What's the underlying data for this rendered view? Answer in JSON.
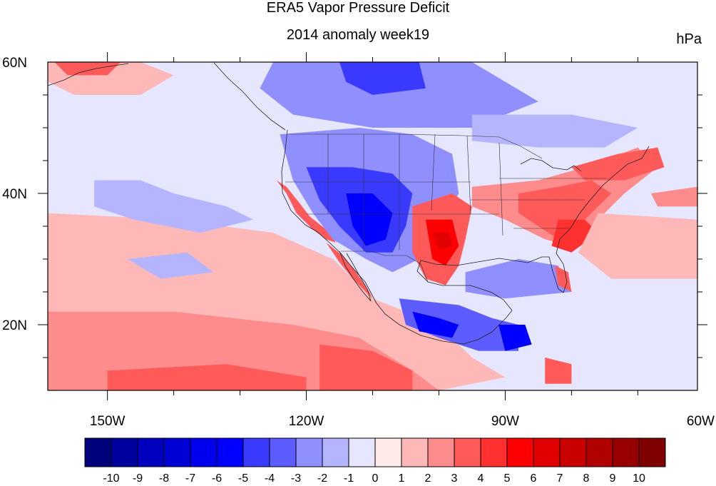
{
  "title": "ERA5 Vapor Pressure Deficit",
  "subtitle": "2014 anomaly week19",
  "units": "hPa",
  "map": {
    "lon_range": [
      -159,
      -61
    ],
    "lat_range": [
      10,
      60
    ],
    "lon_labels": [
      {
        "lon": -150,
        "text": "150W"
      },
      {
        "lon": -120,
        "text": "120W"
      },
      {
        "lon": -90,
        "text": "90W"
      },
      {
        "lon": -60,
        "text": "60W"
      }
    ],
    "lat_labels": [
      {
        "lat": 60,
        "text": "60N"
      },
      {
        "lat": 40,
        "text": "40N"
      },
      {
        "lat": 20,
        "text": "20N"
      }
    ],
    "regions": [
      {
        "name": "california-coast",
        "value": 3,
        "pts": [
          [
            -124.5,
            42
          ],
          [
            -123,
            40
          ],
          [
            -121.5,
            37
          ],
          [
            -119,
            34.5
          ],
          [
            -117,
            33
          ],
          [
            -115.5,
            32.5
          ],
          [
            -117,
            34.5
          ],
          [
            -119.5,
            36.5
          ],
          [
            -121,
            38.5
          ],
          [
            -123,
            41
          ]
        ]
      },
      {
        "name": "baja-coast",
        "value": 3,
        "pts": [
          [
            -117,
            32.5
          ],
          [
            -115,
            29.5
          ],
          [
            -113,
            27
          ],
          [
            -111,
            24.5
          ],
          [
            -109.5,
            23
          ],
          [
            -110.5,
            25
          ],
          [
            -112.5,
            28
          ],
          [
            -114.5,
            30.5
          ]
        ]
      },
      {
        "name": "southwest-pink",
        "value": 1,
        "pts": [
          [
            -159,
            37
          ],
          [
            -140,
            36
          ],
          [
            -125,
            34
          ],
          [
            -116,
            30
          ],
          [
            -110,
            24
          ],
          [
            -100,
            20
          ],
          [
            -95,
            15
          ],
          [
            -90,
            12
          ],
          [
            -100,
            10
          ],
          [
            -159,
            10
          ]
        ]
      },
      {
        "name": "pacific-red",
        "value": 2,
        "pts": [
          [
            -159,
            22
          ],
          [
            -140,
            22
          ],
          [
            -122,
            20
          ],
          [
            -112,
            18
          ],
          [
            -104,
            13
          ],
          [
            -100,
            10
          ],
          [
            -159,
            10
          ]
        ]
      },
      {
        "name": "pacific-deep-red",
        "value": 3,
        "pts": [
          [
            -118,
            17
          ],
          [
            -110,
            16
          ],
          [
            -104,
            13
          ],
          [
            -104,
            10
          ],
          [
            -118,
            10
          ]
        ]
      },
      {
        "name": "pacific-red-west",
        "value": 3,
        "pts": [
          [
            -150,
            13
          ],
          [
            -132,
            14
          ],
          [
            -120,
            12
          ],
          [
            -120,
            10
          ],
          [
            -150,
            10
          ]
        ]
      },
      {
        "name": "nw-pink",
        "value": 1,
        "pts": [
          [
            -159,
            60
          ],
          [
            -145,
            60
          ],
          [
            -140,
            58
          ],
          [
            -145,
            55
          ],
          [
            -155,
            55
          ],
          [
            -159,
            57
          ]
        ]
      },
      {
        "name": "alaska-red",
        "value": 3,
        "pts": [
          [
            -158,
            60
          ],
          [
            -148,
            60
          ],
          [
            -150,
            58
          ],
          [
            -156,
            58
          ]
        ]
      },
      {
        "name": "pacific-light-blue",
        "value": -2,
        "pts": [
          [
            -152,
            42
          ],
          [
            -145,
            42
          ],
          [
            -140,
            40
          ],
          [
            -132,
            38
          ],
          [
            -128,
            36
          ],
          [
            -136,
            34
          ],
          [
            -146,
            36
          ],
          [
            -152,
            38
          ]
        ]
      },
      {
        "name": "pacific-light-blue-2",
        "value": -2,
        "pts": [
          [
            -147,
            30
          ],
          [
            -138,
            31
          ],
          [
            -134,
            28
          ],
          [
            -142,
            27
          ]
        ]
      },
      {
        "name": "canada-blue",
        "value": -3,
        "pts": [
          [
            -125,
            60
          ],
          [
            -95,
            60
          ],
          [
            -85,
            54
          ],
          [
            -95,
            50
          ],
          [
            -110,
            50
          ],
          [
            -122,
            52
          ],
          [
            -127,
            56
          ]
        ]
      },
      {
        "name": "west-blue",
        "value": -3,
        "pts": [
          [
            -124,
            49
          ],
          [
            -112,
            50
          ],
          [
            -104,
            49
          ],
          [
            -98,
            46
          ],
          [
            -97,
            40
          ],
          [
            -100,
            35
          ],
          [
            -103,
            30
          ],
          [
            -107,
            28
          ],
          [
            -111,
            30
          ],
          [
            -116,
            33
          ],
          [
            -119,
            37
          ],
          [
            -122,
            42
          ]
        ]
      },
      {
        "name": "west-deep-blue",
        "value": -5,
        "pts": [
          [
            -120,
            44
          ],
          [
            -113,
            44
          ],
          [
            -107,
            43
          ],
          [
            -104,
            40
          ],
          [
            -105,
            35
          ],
          [
            -107,
            31
          ],
          [
            -111,
            31
          ],
          [
            -115,
            35
          ],
          [
            -118,
            39
          ]
        ]
      },
      {
        "name": "west-core-blue",
        "value": -6,
        "pts": [
          [
            -114,
            40
          ],
          [
            -110,
            40
          ],
          [
            -107,
            37
          ],
          [
            -108,
            33
          ],
          [
            -111,
            32
          ],
          [
            -113,
            35
          ]
        ]
      },
      {
        "name": "canada-deep-blue",
        "value": -5,
        "pts": [
          [
            -115,
            60
          ],
          [
            -103,
            60
          ],
          [
            -102,
            56
          ],
          [
            -110,
            55
          ],
          [
            -114,
            57
          ]
        ]
      },
      {
        "name": "mexico-blue",
        "value": -4,
        "pts": [
          [
            -106,
            24
          ],
          [
            -97,
            23
          ],
          [
            -92,
            21
          ],
          [
            -88,
            20
          ],
          [
            -88,
            16
          ],
          [
            -94,
            16
          ],
          [
            -100,
            18
          ],
          [
            -105,
            20
          ]
        ]
      },
      {
        "name": "mexico-deep-blue",
        "value": -6,
        "pts": [
          [
            -104,
            22
          ],
          [
            -100,
            21
          ],
          [
            -97,
            20
          ],
          [
            -98,
            18
          ],
          [
            -103,
            19
          ]
        ]
      },
      {
        "name": "yucatan-deep-blue",
        "value": -6,
        "pts": [
          [
            -91,
            20
          ],
          [
            -87,
            20
          ],
          [
            -86,
            17
          ],
          [
            -90,
            16
          ]
        ]
      },
      {
        "name": "plains-red",
        "value": 3,
        "pts": [
          [
            -104,
            38
          ],
          [
            -98,
            40
          ],
          [
            -95,
            38
          ],
          [
            -96,
            33
          ],
          [
            -97,
            29
          ],
          [
            -99,
            26
          ],
          [
            -102,
            27
          ],
          [
            -104,
            31
          ]
        ]
      },
      {
        "name": "plains-deep-red",
        "value": 5,
        "pts": [
          [
            -102,
            36
          ],
          [
            -98,
            36
          ],
          [
            -97,
            32
          ],
          [
            -99,
            29
          ],
          [
            -101,
            30
          ]
        ]
      },
      {
        "name": "plains-core-red",
        "value": 6,
        "pts": [
          [
            -101,
            34
          ],
          [
            -98.5,
            34
          ],
          [
            -98,
            32
          ],
          [
            -100,
            31.5
          ]
        ]
      },
      {
        "name": "gulf-blue",
        "value": -3,
        "pts": [
          [
            -96,
            28
          ],
          [
            -88,
            30
          ],
          [
            -82,
            29
          ],
          [
            -80,
            25
          ],
          [
            -90,
            24
          ],
          [
            -96,
            25
          ]
        ]
      },
      {
        "name": "midwest-red",
        "value": 2,
        "pts": [
          [
            -95,
            41
          ],
          [
            -85,
            42
          ],
          [
            -78,
            44
          ],
          [
            -70,
            47
          ],
          [
            -67,
            44
          ],
          [
            -72,
            40
          ],
          [
            -76,
            36
          ],
          [
            -80,
            32
          ],
          [
            -84,
            33
          ],
          [
            -90,
            36
          ],
          [
            -95,
            38
          ]
        ]
      },
      {
        "name": "east-red",
        "value": 3,
        "pts": [
          [
            -88,
            40
          ],
          [
            -82,
            41
          ],
          [
            -77,
            42
          ],
          [
            -74,
            40
          ],
          [
            -78,
            36
          ],
          [
            -82,
            33
          ],
          [
            -85,
            35
          ],
          [
            -88,
            37
          ]
        ]
      },
      {
        "name": "southeast-red",
        "value": 4,
        "pts": [
          [
            -82,
            36
          ],
          [
            -78,
            36
          ],
          [
            -76,
            34
          ],
          [
            -80,
            31
          ],
          [
            -83,
            32
          ]
        ]
      },
      {
        "name": "florida-red",
        "value": 3,
        "pts": [
          [
            -82.5,
            29
          ],
          [
            -80.5,
            28
          ],
          [
            -80,
            25
          ],
          [
            -82,
            26
          ]
        ]
      },
      {
        "name": "northeast-red",
        "value": 3,
        "pts": [
          [
            -80,
            44
          ],
          [
            -73,
            46
          ],
          [
            -67,
            47
          ],
          [
            -66,
            44
          ],
          [
            -72,
            42
          ],
          [
            -78,
            42
          ]
        ]
      },
      {
        "name": "atlantic-pink",
        "value": 1,
        "pts": [
          [
            -76,
            37
          ],
          [
            -61,
            36
          ],
          [
            -61,
            27
          ],
          [
            -74,
            27
          ],
          [
            -79,
            31
          ]
        ]
      },
      {
        "name": "atlantic-red",
        "value": 2,
        "pts": [
          [
            -68,
            40
          ],
          [
            -61,
            41
          ],
          [
            -61,
            38
          ],
          [
            -67,
            38
          ]
        ]
      },
      {
        "name": "central-america-red",
        "value": 3,
        "pts": [
          [
            -84,
            15
          ],
          [
            -80,
            14
          ],
          [
            -80,
            11
          ],
          [
            -84,
            11
          ]
        ]
      },
      {
        "name": "hudson-blue",
        "value": -2,
        "pts": [
          [
            -95,
            52
          ],
          [
            -80,
            52
          ],
          [
            -70,
            50
          ],
          [
            -75,
            47
          ],
          [
            -85,
            47
          ],
          [
            -95,
            48
          ]
        ]
      }
    ]
  },
  "colorbar": {
    "colors": [
      "#00007a",
      "#00009e",
      "#0000be",
      "#0000d6",
      "#0000ee",
      "#0000ff",
      "#3a3aff",
      "#5c5cff",
      "#8f8fff",
      "#b5b5ff",
      "#e6e6ff",
      "#ffe9e9",
      "#ffb8b8",
      "#ff8c8c",
      "#ff5a5a",
      "#ff3030",
      "#ff0000",
      "#e00000",
      "#c80000",
      "#b00000",
      "#980000",
      "#7e0000"
    ],
    "labels": [
      "-10",
      "-9",
      "-8",
      "-7",
      "-6",
      "-5",
      "-4",
      "-3",
      "-2",
      "-1",
      "0",
      "1",
      "2",
      "3",
      "4",
      "5",
      "6",
      "7",
      "8",
      "9",
      "10"
    ]
  }
}
